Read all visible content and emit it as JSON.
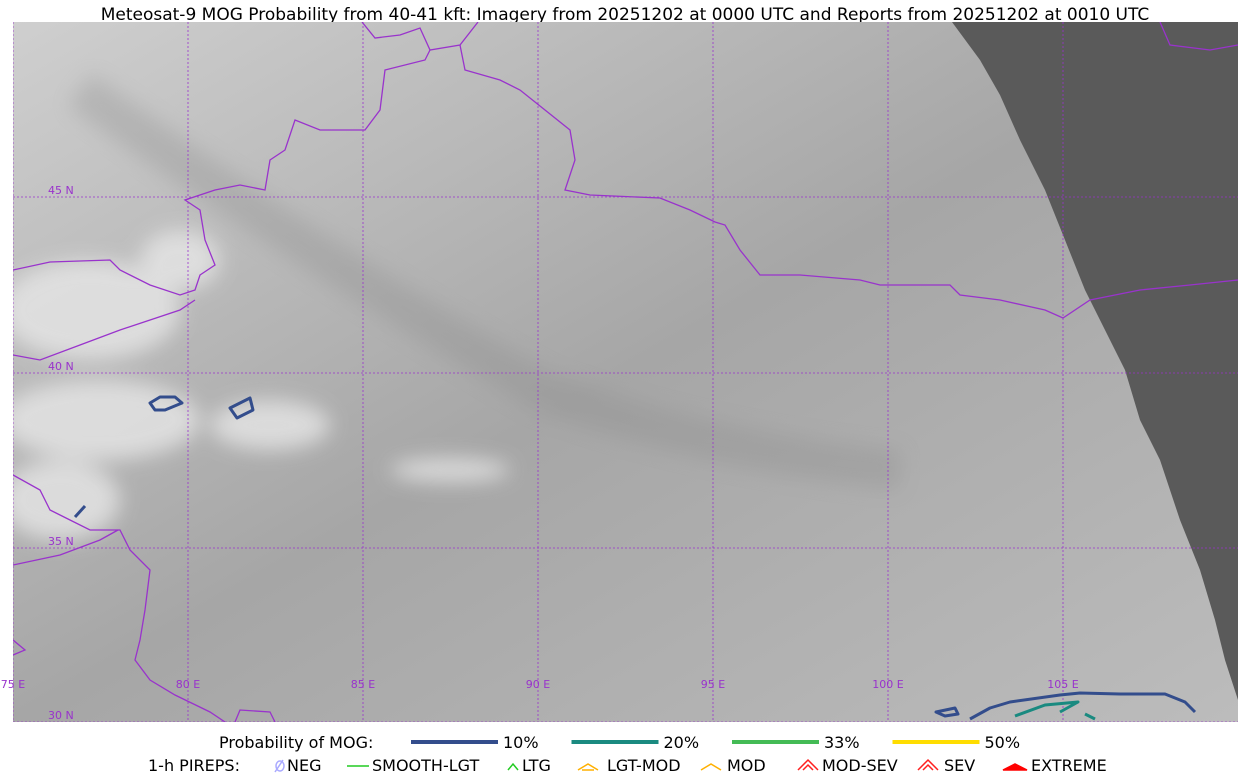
{
  "title": "Meteosat-9 MOG Probability from 40-41 kft: Imagery from 20251202 at 0000 UTC and Reports from 20251202 at 0010 UTC",
  "map": {
    "lat_labels": [
      "45 N",
      "40 N",
      "35 N",
      "30 N"
    ],
    "lon_labels": [
      "75 E",
      "80 E",
      "85 E",
      "90 E",
      "95 E",
      "100 E",
      "105 E"
    ]
  },
  "legend": {
    "probability_title": "Probability of MOG:",
    "probability_items": [
      {
        "label": "10%",
        "color": "#334d8c"
      },
      {
        "label": "20%",
        "color": "#1a8a80"
      },
      {
        "label": "33%",
        "color": "#44bb55"
      },
      {
        "label": "50%",
        "color": "#ffdd00"
      }
    ],
    "pireps_title": "1-h PIREPS:",
    "pireps_items": [
      "NEG",
      "SMOOTH-LGT",
      "LTG",
      "LGT-MOD",
      "MOD",
      "MOD-SEV",
      "SEV",
      "EXTREME"
    ]
  }
}
